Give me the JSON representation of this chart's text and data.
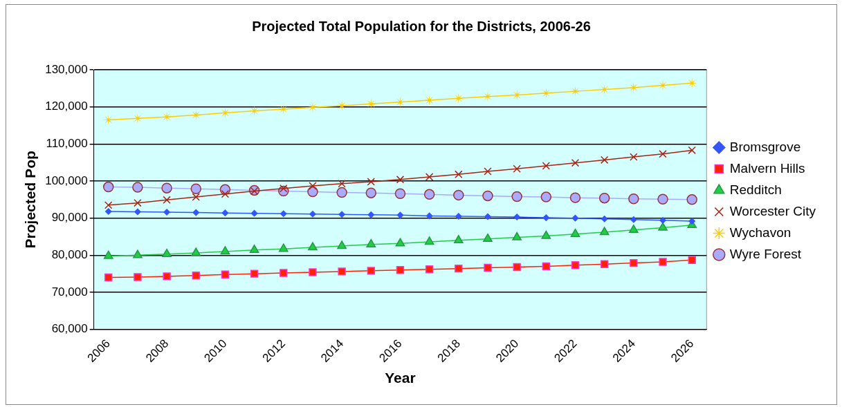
{
  "chart_data": {
    "type": "line",
    "title": "Projected Total Population for the Districts, 2006-26",
    "xlabel": "Year",
    "ylabel": "Projected Pop",
    "categories": [
      "2006",
      null,
      "2008",
      null,
      "2010",
      null,
      "2012",
      null,
      "2014",
      null,
      "2016",
      null,
      "2018",
      null,
      "2020",
      null,
      "2022",
      null,
      "2024",
      null,
      "2026"
    ],
    "ylim": [
      60000,
      130000
    ],
    "yticks": [
      {
        "value": 60000,
        "label": "60,000"
      },
      {
        "value": 70000,
        "label": "70,000"
      },
      {
        "value": 80000,
        "label": "80,000"
      },
      {
        "value": 90000,
        "label": "90,000"
      },
      {
        "value": 100000,
        "label": "100,000"
      },
      {
        "value": 110000,
        "label": "110,000"
      },
      {
        "value": 120000,
        "label": "120,000"
      },
      {
        "value": 130000,
        "label": "130,000"
      }
    ],
    "grid": "y",
    "legend": "right",
    "line_style": "solid",
    "series": [
      {
        "name": "Bromsgrove",
        "color": "#3355ff",
        "marker": "diamond",
        "values": [
          91800,
          91700,
          91600,
          91500,
          91400,
          91300,
          91200,
          91100,
          91000,
          90900,
          90800,
          90600,
          90500,
          90400,
          90300,
          90100,
          90000,
          89800,
          89600,
          89400,
          89200
        ]
      },
      {
        "name": "Malvern Hills",
        "color": "#ff2200",
        "marker": "square",
        "values": [
          74000,
          74100,
          74300,
          74500,
          74800,
          75000,
          75200,
          75400,
          75600,
          75800,
          76000,
          76200,
          76400,
          76600,
          76800,
          77000,
          77300,
          77600,
          77900,
          78200,
          78700
        ]
      },
      {
        "name": "Redditch",
        "color": "#22cc44",
        "marker": "triangle",
        "values": [
          79800,
          80000,
          80300,
          80600,
          81000,
          81400,
          81700,
          82100,
          82500,
          82900,
          83200,
          83600,
          84000,
          84400,
          84800,
          85200,
          85700,
          86200,
          86800,
          87400,
          88100
        ]
      },
      {
        "name": "Worcester City",
        "color": "#aa2211",
        "marker": "cross",
        "values": [
          93500,
          94100,
          94900,
          95700,
          96500,
          97300,
          98000,
          98700,
          99300,
          99800,
          100400,
          101100,
          101800,
          102600,
          103300,
          104100,
          104900,
          105700,
          106500,
          107300,
          108300
        ]
      },
      {
        "name": "Wychavon",
        "color": "#ffcc00",
        "marker": "star",
        "values": [
          116500,
          116900,
          117300,
          117800,
          118400,
          118900,
          119400,
          119900,
          120300,
          120800,
          121300,
          121800,
          122300,
          122800,
          123200,
          123700,
          124200,
          124700,
          125200,
          125800,
          126400
        ]
      },
      {
        "name": "Wyre Forest",
        "color": "#aaaaff",
        "marker": "circle",
        "values": [
          98400,
          98300,
          98100,
          97900,
          97700,
          97500,
          97300,
          97100,
          96900,
          96800,
          96600,
          96400,
          96200,
          96000,
          95800,
          95700,
          95500,
          95400,
          95200,
          95100,
          95000
        ]
      }
    ]
  }
}
